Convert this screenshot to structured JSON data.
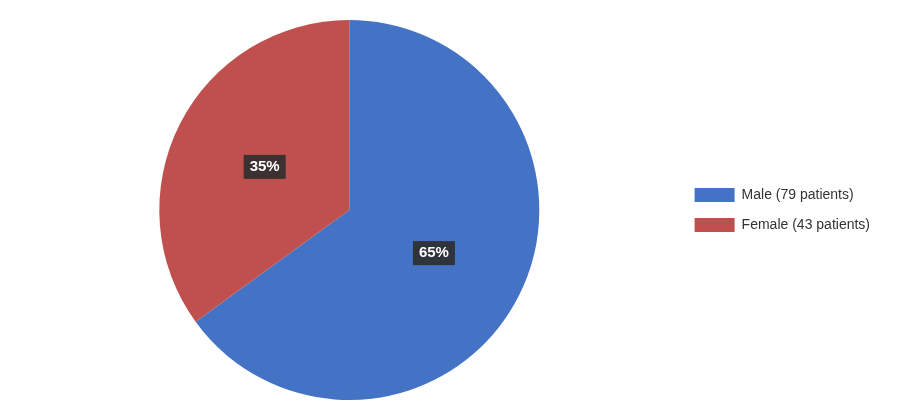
{
  "chart_data": {
    "type": "pie",
    "categories": [
      "Male (79 patients)",
      "Female (43 patients)"
    ],
    "values": [
      65,
      35
    ],
    "value_labels": [
      "65%",
      "35%"
    ],
    "colors": [
      "#4472C4",
      "#C0504D"
    ],
    "data_labels": true,
    "legend": "right"
  }
}
